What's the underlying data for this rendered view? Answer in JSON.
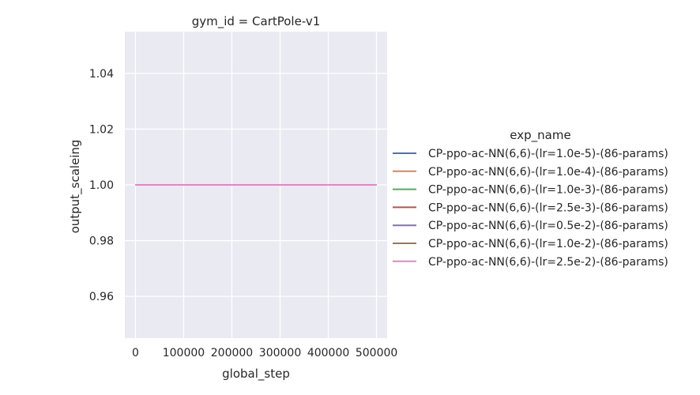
{
  "chart_data": {
    "type": "line",
    "title": "gym_id = CartPole-v1",
    "xlabel": "global_step",
    "ylabel": "output_scaleing",
    "xlim": [
      -22000,
      522000
    ],
    "ylim": [
      0.945,
      1.055
    ],
    "xticks": [
      0,
      100000,
      200000,
      300000,
      400000,
      500000
    ],
    "xtick_labels": [
      "0",
      "100000",
      "200000",
      "300000",
      "400000",
      "500000"
    ],
    "yticks": [
      0.96,
      0.98,
      1.0,
      1.02,
      1.04
    ],
    "ytick_labels": [
      "0.96",
      "0.98",
      "1.00",
      "1.02",
      "1.04"
    ],
    "grid": true,
    "legend_title": "exp_name",
    "legend_position": "right",
    "series": [
      {
        "name": "CP-ppo-ac-NN(6,6)-(lr=1.0e-5)-(86-params)",
        "color": "#4c72b0",
        "x": [
          0,
          500000
        ],
        "y": [
          1.0,
          1.0
        ]
      },
      {
        "name": "CP-ppo-ac-NN(6,6)-(lr=1.0e-4)-(86-params)",
        "color": "#dd8452",
        "x": [
          0,
          500000
        ],
        "y": [
          1.0,
          1.0
        ]
      },
      {
        "name": "CP-ppo-ac-NN(6,6)-(lr=1.0e-3)-(86-params)",
        "color": "#55a868",
        "x": [
          0,
          500000
        ],
        "y": [
          1.0,
          1.0
        ]
      },
      {
        "name": "CP-ppo-ac-NN(6,6)-(lr=2.5e-3)-(86-params)",
        "color": "#c44e52",
        "x": [
          0,
          500000
        ],
        "y": [
          1.0,
          1.0
        ]
      },
      {
        "name": "CP-ppo-ac-NN(6,6)-(lr=0.5e-2)-(86-params)",
        "color": "#8172b3",
        "x": [
          0,
          500000
        ],
        "y": [
          1.0,
          1.0
        ]
      },
      {
        "name": "CP-ppo-ac-NN(6,6)-(lr=1.0e-2)-(86-params)",
        "color": "#937860",
        "x": [
          0,
          500000
        ],
        "y": [
          1.0,
          1.0
        ]
      },
      {
        "name": "CP-ppo-ac-NN(6,6)-(lr=2.5e-2)-(86-params)",
        "color": "#da8bc3",
        "x": [
          0,
          500000
        ],
        "y": [
          1.0,
          1.0
        ]
      }
    ]
  }
}
